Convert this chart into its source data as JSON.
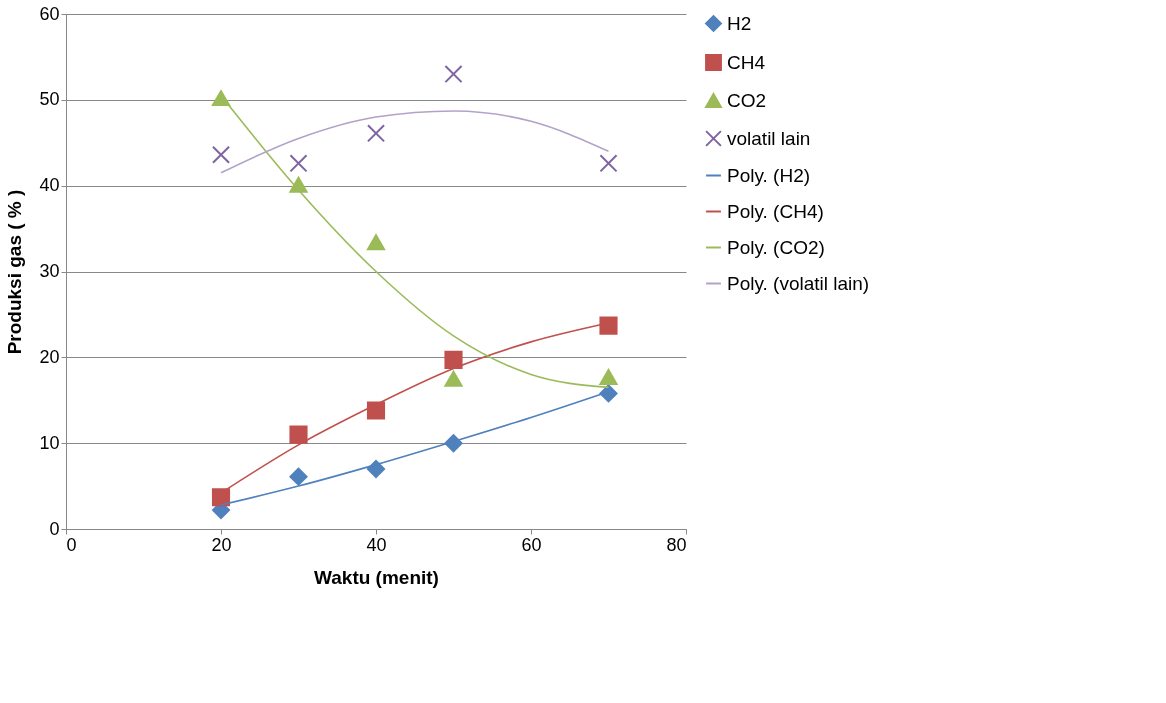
{
  "chart_data": {
    "type": "scatter",
    "xlabel": "Waktu (menit)",
    "ylabel": "Produksi gas ( % )",
    "xlim": [
      0,
      80
    ],
    "xticks": [
      0,
      20,
      40,
      60,
      80
    ],
    "ylim": [
      0,
      60
    ],
    "yticks": [
      0,
      10,
      20,
      30,
      40,
      50,
      60
    ],
    "grid": "y",
    "legend": "right",
    "line_style": "solid",
    "series": [
      {
        "name": "H2",
        "marker": "diamond",
        "color": "#4f81bd",
        "x": [
          20,
          30,
          40,
          50,
          70
        ],
        "values": [
          2.2,
          6.1,
          7.0,
          10.0,
          15.8
        ]
      },
      {
        "name": "CH4",
        "marker": "square",
        "color": "#c0504d",
        "x": [
          20,
          30,
          40,
          50,
          70
        ],
        "values": [
          3.7,
          11.0,
          13.8,
          19.7,
          23.7
        ]
      },
      {
        "name": "CO2",
        "marker": "triangle",
        "color": "#9bbb59",
        "x": [
          20,
          30,
          40,
          50,
          70
        ],
        "values": [
          50.2,
          40.1,
          33.4,
          17.5,
          17.7
        ]
      },
      {
        "name": "volatil lain",
        "marker": "cross",
        "color": "#8064a2",
        "x": [
          20,
          30,
          40,
          50,
          70
        ],
        "values": [
          43.6,
          42.6,
          46.1,
          53.0,
          42.6
        ]
      },
      {
        "name": "Poly. (H2)",
        "type": "line",
        "marker": "none",
        "color": "#4f81bd",
        "x": [
          20,
          30,
          40,
          50,
          60,
          70
        ],
        "values": [
          2.8,
          5.0,
          7.5,
          10.2,
          13.0,
          16.0
        ]
      },
      {
        "name": "Poly. (CH4)",
        "type": "line",
        "marker": "none",
        "color": "#c0504d",
        "x": [
          20,
          30,
          40,
          50,
          60,
          70
        ],
        "values": [
          4.2,
          9.8,
          14.5,
          18.7,
          21.8,
          24.0
        ]
      },
      {
        "name": "Poly. (CO2)",
        "type": "line",
        "marker": "none",
        "color": "#9bbb59",
        "x": [
          20,
          30,
          40,
          50,
          60,
          70
        ],
        "values": [
          50.5,
          39.5,
          30.0,
          22.5,
          18.0,
          16.5
        ]
      },
      {
        "name": "Poly. (volatil lain)",
        "type": "line",
        "marker": "none",
        "color": "#b3a2c7",
        "x": [
          20,
          30,
          40,
          50,
          60,
          70
        ],
        "values": [
          41.5,
          45.5,
          48.0,
          48.7,
          47.5,
          44.0
        ]
      }
    ]
  }
}
